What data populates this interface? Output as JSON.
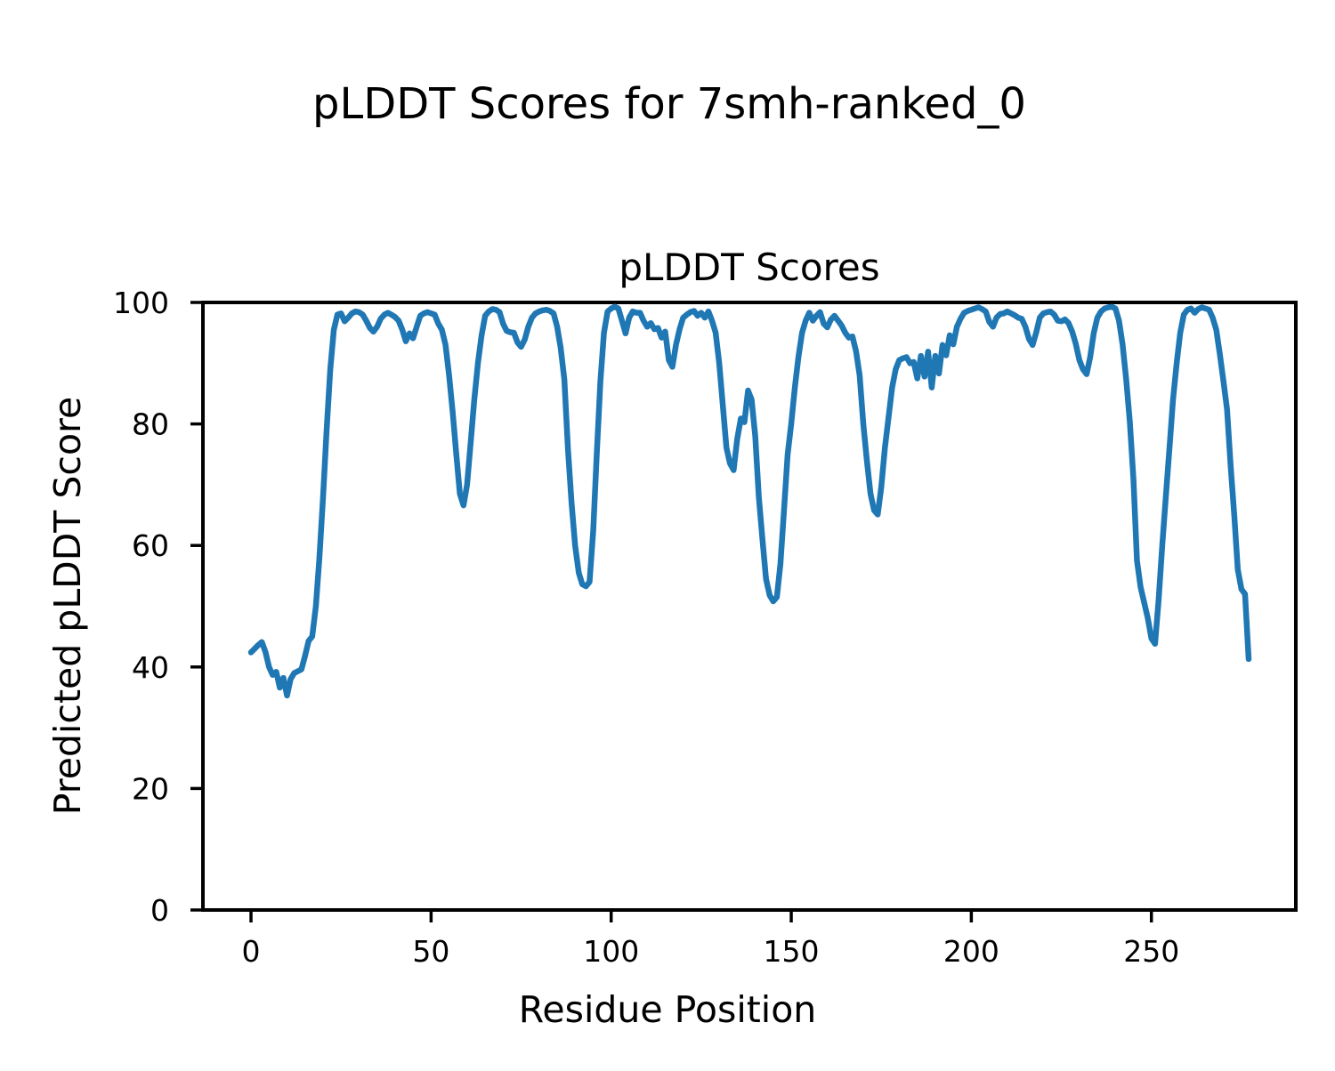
{
  "chart_data": {
    "type": "line",
    "title": "pLDDT Scores for 7smh-ranked_0",
    "axes_title": "pLDDT Scores",
    "xlabel": "Residue Position",
    "ylabel": "Predicted pLDDT Score",
    "x_ticks": [
      0,
      50,
      100,
      150,
      200,
      250
    ],
    "y_ticks": [
      0,
      20,
      40,
      60,
      80,
      100
    ],
    "xlim": [
      -13.35,
      290.1
    ],
    "ylim": [
      0,
      100
    ],
    "grid": false,
    "legend_position": "none",
    "line_color": "#1f77b4",
    "axis_color": "#000000",
    "series": [
      {
        "name": "pLDDT",
        "x_start": 0,
        "x_step": 1,
        "values": [
          42.4,
          43.0,
          43.6,
          44.1,
          42.5,
          40.0,
          38.7,
          39.2,
          36.6,
          38.2,
          35.3,
          38.0,
          39.0,
          39.3,
          39.6,
          41.8,
          44.3,
          45.0,
          50.0,
          58.0,
          68.0,
          79.0,
          89.0,
          95.5,
          98.0,
          98.2,
          96.9,
          97.5,
          98.2,
          98.5,
          98.4,
          98.0,
          97.0,
          95.8,
          95.2,
          96.0,
          97.3,
          98.0,
          98.3,
          98.0,
          97.6,
          97.0,
          95.5,
          93.6,
          94.9,
          94.1,
          96.0,
          97.8,
          98.2,
          98.4,
          98.2,
          98.0,
          96.5,
          95.5,
          93.0,
          88.0,
          82.0,
          75.0,
          68.5,
          66.6,
          70.0,
          77.0,
          84.0,
          90.0,
          94.5,
          97.8,
          98.5,
          98.9,
          98.8,
          98.4,
          96.5,
          95.3,
          95.1,
          95.0,
          93.4,
          92.7,
          93.9,
          96.0,
          97.5,
          98.2,
          98.5,
          98.7,
          98.8,
          98.6,
          98.2,
          96.0,
          92.5,
          87.3,
          76.0,
          67.0,
          60.0,
          55.5,
          53.6,
          53.3,
          54.0,
          62.3,
          75.0,
          87.0,
          95.0,
          98.5,
          99.0,
          99.3,
          99.0,
          97.0,
          94.9,
          97.5,
          98.5,
          98.3,
          98.3,
          97.0,
          96.0,
          96.6,
          95.6,
          95.8,
          94.2,
          95.2,
          90.5,
          89.4,
          93.0,
          95.6,
          97.5,
          98.0,
          98.4,
          98.6,
          97.8,
          98.3,
          97.5,
          98.5,
          97.0,
          95.0,
          90.0,
          83.0,
          76.1,
          73.5,
          72.4,
          77.5,
          80.9,
          80.3,
          85.5,
          84.0,
          78.0,
          68.0,
          61.0,
          54.5,
          51.8,
          50.8,
          51.5,
          57.0,
          66.0,
          75.0,
          80.0,
          86.0,
          91.0,
          95.0,
          97.0,
          98.3,
          97.0,
          97.8,
          98.4,
          96.5,
          95.9,
          97.2,
          97.8,
          97.0,
          96.2,
          95.0,
          94.2,
          94.4,
          91.9,
          88.0,
          80.0,
          74.0,
          68.5,
          65.8,
          65.1,
          69.6,
          76.1,
          81.0,
          86.0,
          89.0,
          90.5,
          90.8,
          91.0,
          90.0,
          90.2,
          87.5,
          91.2,
          87.8,
          91.9,
          86.0,
          91.2,
          88.3,
          93.0,
          91.3,
          94.6,
          93.1,
          96.0,
          97.3,
          98.3,
          98.6,
          98.8,
          99.0,
          99.2,
          98.9,
          98.5,
          96.8,
          96.0,
          97.5,
          98.1,
          98.2,
          98.5,
          98.2,
          97.9,
          97.5,
          97.3,
          96.0,
          94.0,
          93.0,
          95.0,
          97.5,
          98.2,
          98.4,
          98.5,
          98.0,
          97.0,
          96.9,
          97.2,
          96.6,
          95.2,
          93.2,
          90.5,
          89.0,
          88.2,
          91.0,
          95.0,
          97.5,
          98.5,
          99.0,
          99.2,
          99.3,
          99.0,
          97.0,
          93.1,
          87.3,
          80.5,
          71.0,
          57.5,
          53.1,
          50.6,
          48.0,
          44.7,
          43.8,
          51.0,
          60.0,
          68.0,
          76.0,
          84.0,
          90.0,
          95.0,
          98.0,
          98.8,
          99.0,
          98.3,
          98.9,
          99.2,
          99.0,
          98.8,
          97.5,
          95.5,
          91.5,
          87.0,
          82.4,
          73.0,
          65.0,
          56.0,
          52.8,
          52.0,
          41.3
        ]
      }
    ]
  }
}
